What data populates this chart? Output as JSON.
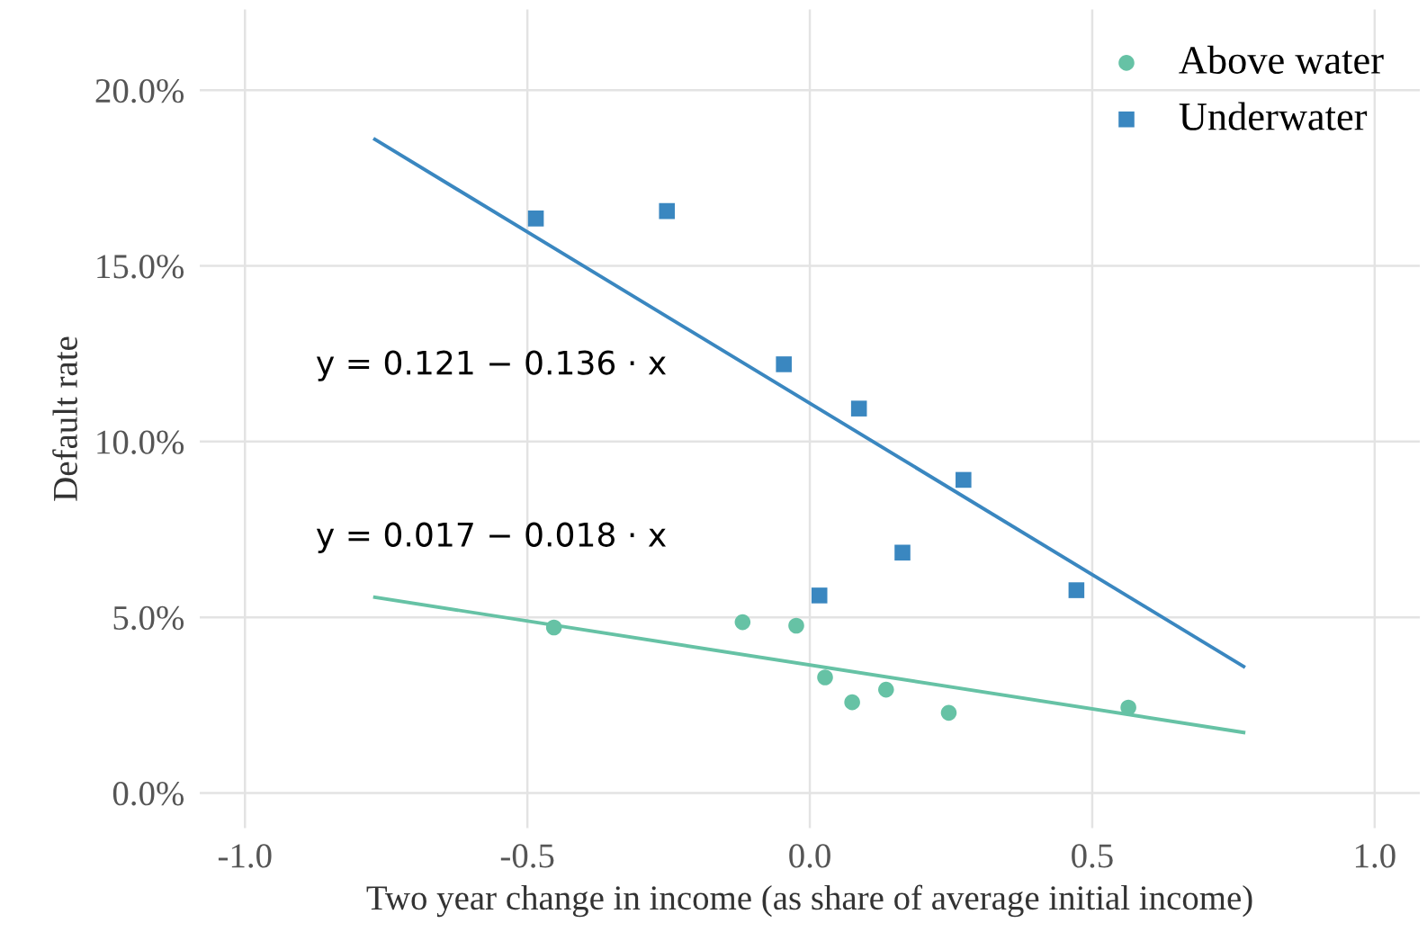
{
  "chart_data": {
    "type": "scatter",
    "xlabel": "Two year change in income (as share of average initial income)",
    "ylabel": "Default rate",
    "xlim": [
      -1.08,
      1.08
    ],
    "ylim": [
      -1.0,
      22.3
    ],
    "xticks": [
      {
        "value": -1.0,
        "label": "-1.0"
      },
      {
        "value": -0.5,
        "label": "-0.5"
      },
      {
        "value": 0,
        "label": "0.0"
      },
      {
        "value": 0.5,
        "label": "0.5"
      },
      {
        "value": 1.0,
        "label": "1.0"
      }
    ],
    "yticks": [
      {
        "value": 0,
        "label": "0.0%"
      },
      {
        "value": 5,
        "label": "5.0%"
      },
      {
        "value": 10,
        "label": "10.0%"
      },
      {
        "value": 15,
        "label": "15.0%"
      },
      {
        "value": 20,
        "label": "20.0%"
      }
    ],
    "grid": true,
    "legend": "top right",
    "series": [
      {
        "name": "Above water",
        "marker": "circle",
        "color": "#66c2a5",
        "x": [
          -0.453,
          -0.119,
          -0.024,
          0.027,
          0.135,
          0.075,
          0.246,
          0.564
        ],
        "values": [
          4.71,
          4.86,
          4.76,
          3.29,
          2.94,
          2.58,
          2.28,
          2.43
        ]
      },
      {
        "name": "Underwater",
        "marker": "square",
        "color": "#3a87c0",
        "x": [
          -0.485,
          -0.253,
          -0.046,
          0.087,
          0.272,
          0.164,
          0.017,
          0.472
        ],
        "values": [
          16.35,
          16.56,
          12.2,
          10.94,
          8.91,
          6.84,
          5.62,
          5.77
        ]
      },
      {
        "type": "line",
        "color": "#66c2a5",
        "x": [
          -0.77,
          0.768
        ],
        "values": [
          5.57,
          1.72
        ]
      },
      {
        "type": "line",
        "color": "#3a87c0",
        "x": [
          -0.77,
          0.768
        ],
        "values": [
          18.6,
          3.6
        ]
      }
    ],
    "annotations": [
      "y = 0.121 − 0.136 · x",
      "y = 0.017 − 0.018 · x"
    ]
  }
}
